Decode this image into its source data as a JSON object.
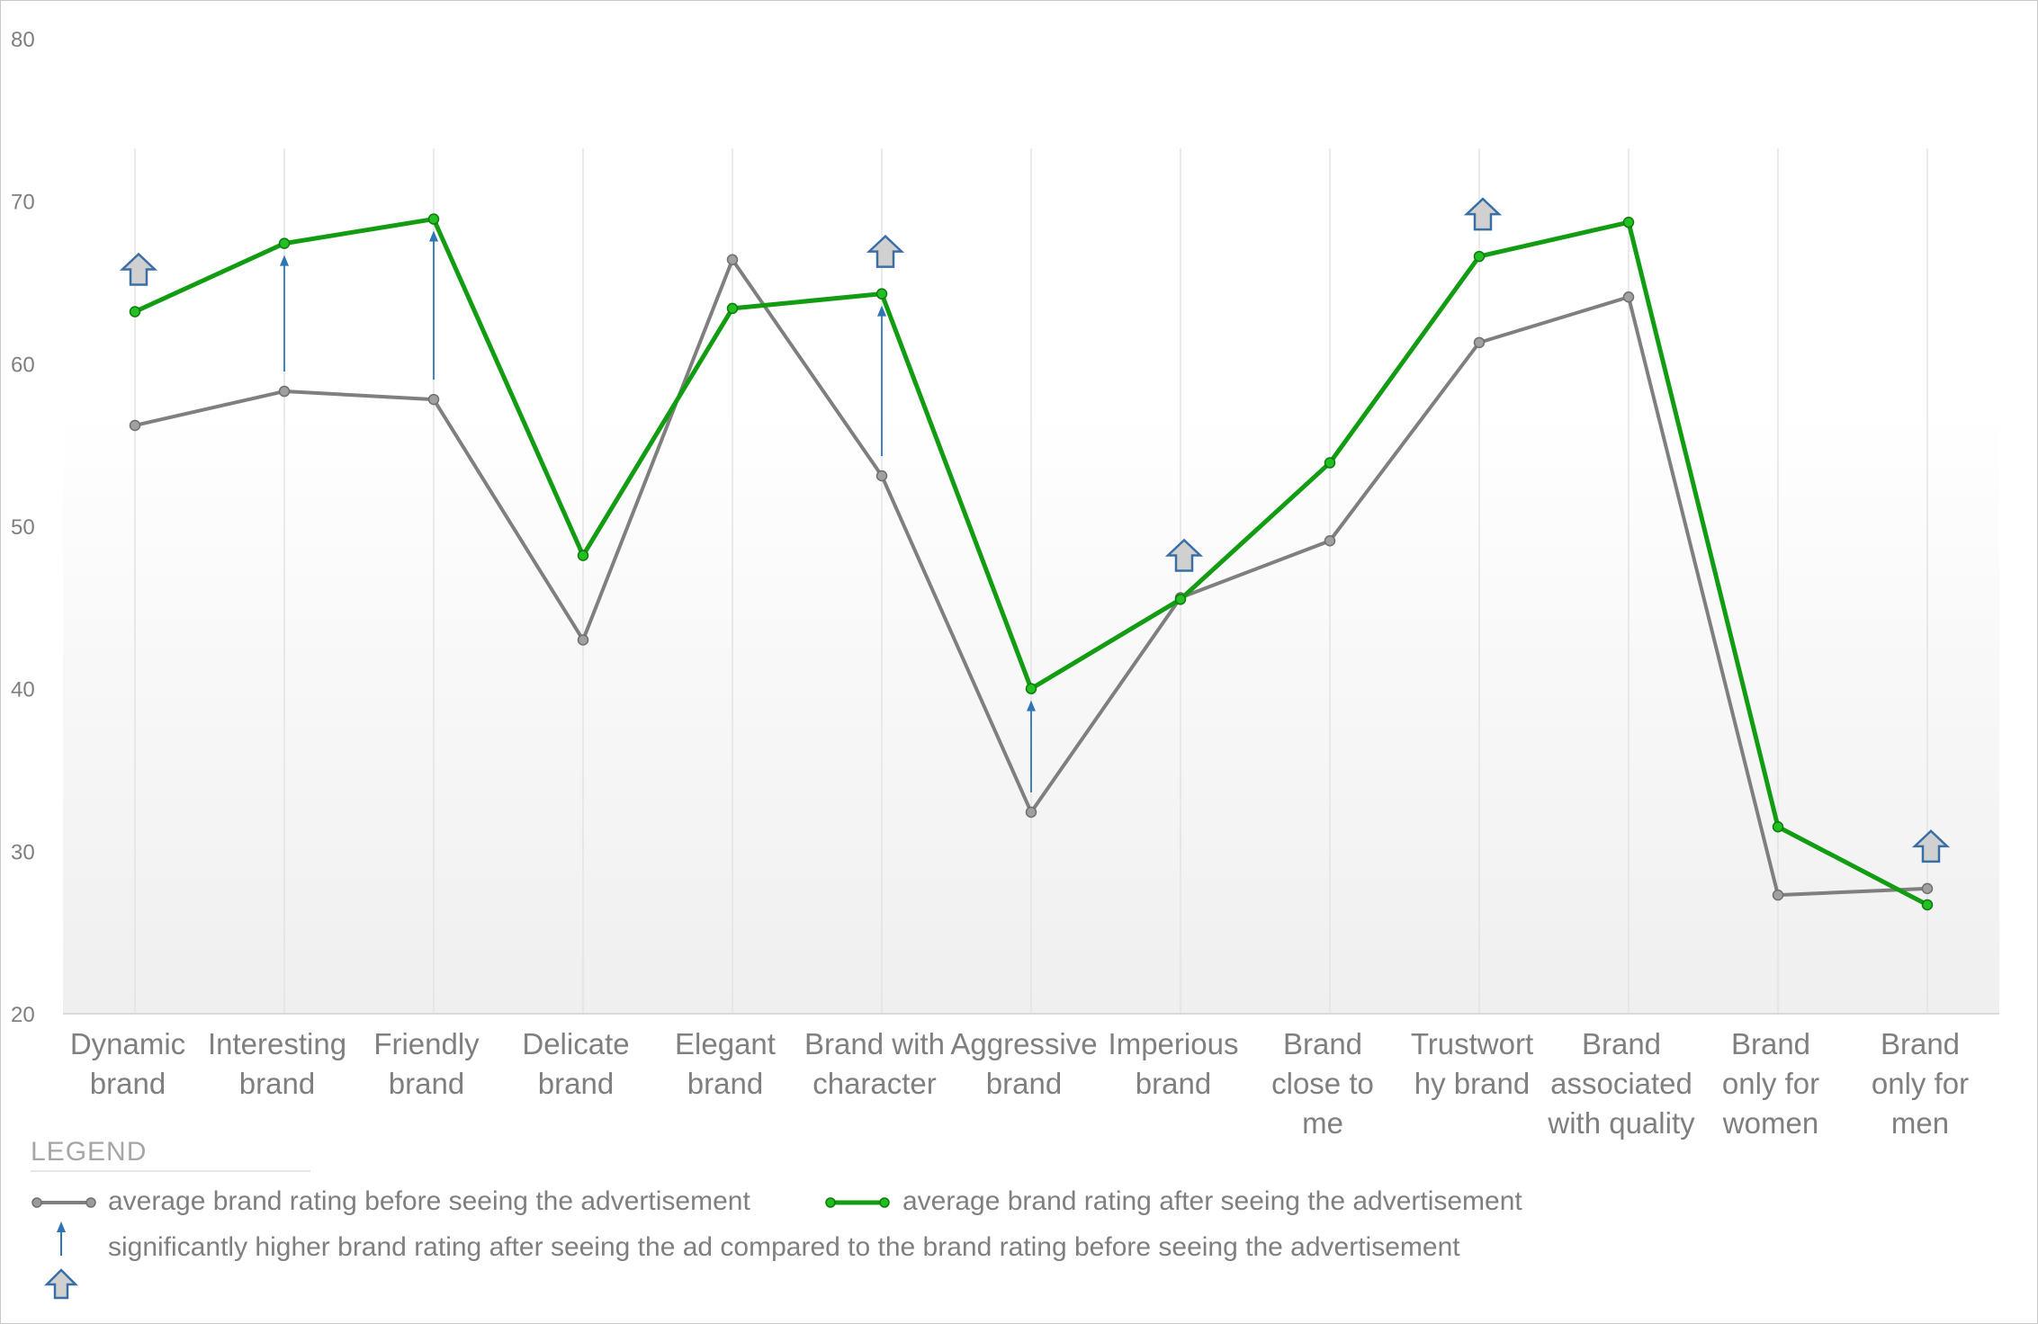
{
  "chart_data": {
    "type": "line",
    "categories": [
      [
        "Dynamic",
        "brand"
      ],
      [
        "Interesting",
        "brand"
      ],
      [
        "Friendly",
        "brand"
      ],
      [
        "Delicate",
        "brand"
      ],
      [
        "Elegant",
        "brand"
      ],
      [
        "Brand with",
        "character"
      ],
      [
        "Aggressive",
        "brand"
      ],
      [
        "Imperious",
        "brand"
      ],
      [
        "Brand",
        "close to",
        "me"
      ],
      [
        "Trustwort",
        "hy brand"
      ],
      [
        "Brand",
        "associated",
        "with quality"
      ],
      [
        "Brand",
        "only for",
        "women"
      ],
      [
        "Brand",
        "only for",
        "men"
      ]
    ],
    "series": [
      {
        "name": "average brand rating before seeing the advertisement",
        "color": "#7f7f7f",
        "values": [
          56.2,
          58.3,
          57.8,
          43.0,
          66.4,
          53.1,
          32.4,
          45.6,
          49.1,
          61.3,
          64.1,
          27.3,
          27.7
        ]
      },
      {
        "name": "average brand rating after seeing the advertisement",
        "color": "#119c11",
        "values": [
          63.2,
          67.4,
          68.9,
          48.2,
          63.4,
          64.3,
          40.0,
          45.5,
          53.9,
          66.6,
          68.7,
          31.5,
          26.7
        ]
      }
    ],
    "ylim": [
      20,
      80
    ],
    "yticks": [
      20,
      30,
      40,
      50,
      60,
      70,
      80
    ],
    "grid": "vertical",
    "significance_arrow_indices": [
      1,
      2,
      5,
      6
    ],
    "significance_block_arrow_indices": [
      0,
      5,
      7,
      9,
      12
    ],
    "arrow_color": "#2e75b6",
    "block_arrow_fill": "#d0d0d0",
    "block_arrow_stroke": "#3a6fa5"
  },
  "legend": {
    "title": "LEGEND",
    "before_label": "average brand rating before seeing the advertisement",
    "after_label": "average brand rating after seeing the advertisement",
    "significance_label": "significantly higher brand rating after seeing the ad compared to the brand rating before seeing the advertisement"
  }
}
